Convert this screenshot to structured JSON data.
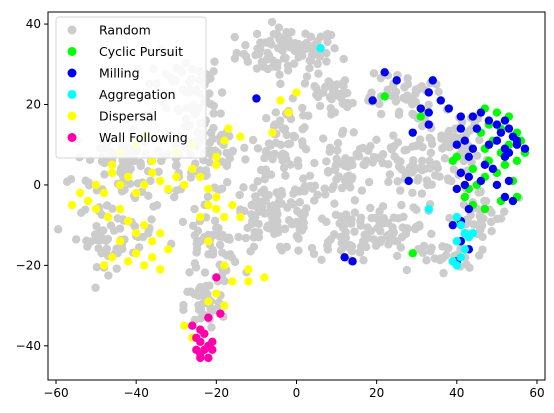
{
  "chart_data": {
    "type": "scatter",
    "title": "",
    "xlabel": "",
    "ylabel": "",
    "xlim": [
      -62,
      62
    ],
    "ylim": [
      -48.5,
      43
    ],
    "xticks": [
      -60,
      -40,
      -20,
      0,
      20,
      40,
      60
    ],
    "yticks": [
      -40,
      -20,
      0,
      20,
      40
    ],
    "grid": false,
    "legend_position": "top-left",
    "series": [
      {
        "name": "Random",
        "color": "#cccccc",
        "regions": [
          {
            "cx": -2,
            "cy": 33,
            "rx": 13,
            "ry": 6,
            "n": 90
          },
          {
            "cx": -28,
            "cy": 24,
            "rx": 10,
            "ry": 9,
            "n": 55
          },
          {
            "cx": -42,
            "cy": 5,
            "rx": 14,
            "ry": 10,
            "n": 90
          },
          {
            "cx": -45,
            "cy": -12,
            "rx": 10,
            "ry": 8,
            "n": 55
          },
          {
            "cx": -22,
            "cy": 8,
            "rx": 10,
            "ry": 10,
            "n": 70
          },
          {
            "cx": -5,
            "cy": -8,
            "rx": 12,
            "ry": 10,
            "n": 110
          },
          {
            "cx": -3,
            "cy": 12,
            "rx": 7,
            "ry": 8,
            "n": 50
          },
          {
            "cx": -22,
            "cy": -15,
            "rx": 8,
            "ry": 8,
            "n": 50
          },
          {
            "cx": -23,
            "cy": -30,
            "rx": 5,
            "ry": 6,
            "n": 35
          },
          {
            "cx": 10,
            "cy": 22,
            "rx": 10,
            "ry": 6,
            "n": 45
          },
          {
            "cx": 12,
            "cy": 5,
            "rx": 8,
            "ry": 9,
            "n": 60
          },
          {
            "cx": 12,
            "cy": -12,
            "rx": 8,
            "ry": 7,
            "n": 55
          },
          {
            "cx": 26,
            "cy": 22,
            "rx": 8,
            "ry": 6,
            "n": 45
          },
          {
            "cx": 28,
            "cy": 5,
            "rx": 8,
            "ry": 9,
            "n": 60
          },
          {
            "cx": 25,
            "cy": -12,
            "rx": 10,
            "ry": 7,
            "n": 55
          },
          {
            "cx": 40,
            "cy": 10,
            "rx": 7,
            "ry": 8,
            "n": 50
          },
          {
            "cx": 45,
            "cy": -8,
            "rx": 8,
            "ry": 8,
            "n": 45
          },
          {
            "cx": 38,
            "cy": -18,
            "rx": 5,
            "ry": 3,
            "n": 20
          }
        ]
      },
      {
        "name": "Cyclic Pursuit",
        "color": "#00ff00",
        "points": [
          [
            47,
            19
          ],
          [
            50,
            18
          ],
          [
            53,
            17
          ],
          [
            48,
            15
          ],
          [
            51,
            14
          ],
          [
            55,
            13
          ],
          [
            46,
            13
          ],
          [
            56,
            11
          ],
          [
            49,
            11
          ],
          [
            53,
            10
          ],
          [
            47,
            9
          ],
          [
            57,
            8
          ],
          [
            51,
            8
          ],
          [
            55,
            6
          ],
          [
            48,
            6
          ],
          [
            52,
            5
          ],
          [
            44,
            4
          ],
          [
            47,
            2
          ],
          [
            50,
            3
          ],
          [
            54,
            1
          ],
          [
            45,
            0
          ],
          [
            42,
            -3
          ],
          [
            44,
            -5
          ],
          [
            47,
            -6
          ],
          [
            51,
            -4
          ],
          [
            39,
            6
          ],
          [
            40,
            7
          ],
          [
            31,
            17
          ],
          [
            29,
            -17
          ],
          [
            22,
            22
          ],
          [
            55,
            -3
          ],
          [
            43,
            -1
          ]
        ]
      },
      {
        "name": "Milling",
        "color": "#0000ee",
        "points": [
          [
            -10,
            21.5
          ],
          [
            22,
            28
          ],
          [
            25,
            26
          ],
          [
            31,
            19
          ],
          [
            33,
            23
          ],
          [
            34,
            26
          ],
          [
            36,
            21
          ],
          [
            38,
            19
          ],
          [
            33,
            18
          ],
          [
            33,
            15
          ],
          [
            41,
            17
          ],
          [
            41,
            14
          ],
          [
            42,
            11
          ],
          [
            44,
            17
          ],
          [
            46,
            18
          ],
          [
            48,
            16
          ],
          [
            45,
            14
          ],
          [
            50,
            15
          ],
          [
            51,
            13
          ],
          [
            52,
            16
          ],
          [
            53,
            14
          ],
          [
            54,
            12
          ],
          [
            55,
            11
          ],
          [
            50,
            11
          ],
          [
            52,
            9
          ],
          [
            53,
            8
          ],
          [
            55,
            10
          ],
          [
            57,
            9
          ],
          [
            48,
            10
          ],
          [
            43,
            7
          ],
          [
            47,
            5
          ],
          [
            49,
            4
          ],
          [
            52,
            7
          ],
          [
            44,
            9
          ],
          [
            40,
            10
          ],
          [
            41,
            3
          ],
          [
            40,
            -1
          ],
          [
            42,
            0
          ],
          [
            43,
            2
          ],
          [
            46,
            1
          ],
          [
            53,
            1
          ],
          [
            54,
            -4
          ],
          [
            52,
            -3
          ],
          [
            43,
            -6
          ],
          [
            41,
            -9
          ],
          [
            39,
            -10
          ],
          [
            41,
            -14
          ],
          [
            43,
            -16
          ],
          [
            12,
            -18
          ],
          [
            14,
            -19
          ],
          [
            19,
            21
          ],
          [
            28,
            1
          ],
          [
            29,
            13
          ],
          [
            40,
            -19
          ],
          [
            50,
            0
          ]
        ]
      },
      {
        "name": "Aggregation",
        "color": "#00ffff",
        "points": [
          [
            6,
            34
          ],
          [
            33,
            -6
          ],
          [
            40,
            -8
          ],
          [
            41,
            -10
          ],
          [
            42,
            -12
          ],
          [
            43,
            -13
          ],
          [
            40,
            -14
          ],
          [
            44,
            -12
          ],
          [
            42,
            -16
          ],
          [
            41,
            -18
          ],
          [
            40,
            -20
          ],
          [
            39,
            -19
          ]
        ]
      },
      {
        "name": "Dispersal",
        "color": "#ffff00",
        "points": [
          [
            -50,
            0
          ],
          [
            -48,
            -2
          ],
          [
            -46,
            3
          ],
          [
            -44,
            0
          ],
          [
            -42,
            2
          ],
          [
            -40,
            -2
          ],
          [
            -38,
            0
          ],
          [
            -36,
            3
          ],
          [
            -34,
            1
          ],
          [
            -32,
            -1
          ],
          [
            -30,
            2
          ],
          [
            -28,
            0
          ],
          [
            -52,
            -4
          ],
          [
            -54,
            -2
          ],
          [
            -56,
            -5
          ],
          [
            -50,
            -6
          ],
          [
            -47,
            -8
          ],
          [
            -44,
            -6
          ],
          [
            -42,
            -9
          ],
          [
            -40,
            -12
          ],
          [
            -38,
            -10
          ],
          [
            -36,
            -14
          ],
          [
            -34,
            -12
          ],
          [
            -32,
            -16
          ],
          [
            -44,
            -14
          ],
          [
            -46,
            -18
          ],
          [
            -48,
            -20
          ],
          [
            -42,
            -19
          ],
          [
            -38,
            -20
          ],
          [
            -36,
            -18
          ],
          [
            -34,
            -21
          ],
          [
            -40,
            -17
          ],
          [
            -46,
            5
          ],
          [
            -44,
            8
          ],
          [
            -40,
            10
          ],
          [
            -38,
            12
          ],
          [
            -36,
            6
          ],
          [
            -30,
            8
          ],
          [
            -26,
            4
          ],
          [
            -22,
            -5
          ],
          [
            -20,
            -6
          ],
          [
            -18,
            -8
          ],
          [
            -24,
            -8
          ],
          [
            -20,
            -3
          ],
          [
            -24,
            2
          ],
          [
            -20,
            5
          ],
          [
            -16,
            -5
          ],
          [
            -22,
            -1
          ],
          [
            -14,
            -8
          ],
          [
            -22,
            -14
          ],
          [
            -18,
            -20
          ],
          [
            -12,
            -21
          ],
          [
            -16,
            -24
          ],
          [
            -20,
            -27
          ],
          [
            -28,
            -35
          ],
          [
            -26,
            -38
          ],
          [
            -24,
            -36
          ],
          [
            -22,
            -29
          ],
          [
            -18,
            -30
          ],
          [
            -12,
            -24
          ],
          [
            -8,
            -23
          ],
          [
            -4,
            21
          ],
          [
            -2,
            18
          ],
          [
            0,
            23
          ],
          [
            -6,
            13
          ],
          [
            -17,
            14
          ],
          [
            -18,
            11
          ],
          [
            -20,
            7
          ],
          [
            -26,
            10
          ],
          [
            -14,
            12
          ]
        ]
      },
      {
        "name": "Wall Following",
        "color": "#ff00aa",
        "points": [
          [
            -20,
            -23
          ],
          [
            -26,
            -35
          ],
          [
            -24,
            -36
          ],
          [
            -22,
            -33
          ],
          [
            -19,
            -32
          ],
          [
            -25,
            -38
          ],
          [
            -23,
            -37
          ],
          [
            -21,
            -39
          ],
          [
            -24,
            -39
          ],
          [
            -22,
            -40
          ],
          [
            -25,
            -41
          ],
          [
            -23,
            -41
          ],
          [
            -21,
            -41
          ],
          [
            -24,
            -42
          ],
          [
            -22,
            -43
          ],
          [
            -24,
            -43
          ]
        ]
      }
    ],
    "legend": [
      "Random",
      "Cyclic Pursuit",
      "Milling",
      "Aggregation",
      "Dispersal",
      "Wall Following"
    ]
  }
}
